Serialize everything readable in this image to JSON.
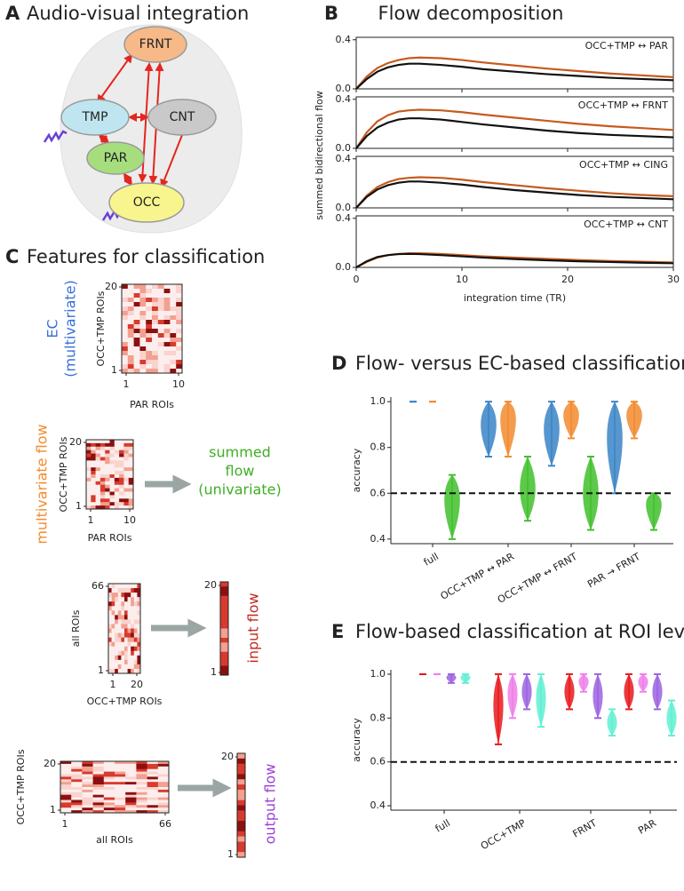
{
  "panels": {
    "a": {
      "label": "A",
      "title": "Audio-visual integration",
      "nodes": [
        {
          "label": "FRNT"
        },
        {
          "label": "TMP"
        },
        {
          "label": "CNT"
        },
        {
          "label": "PAR"
        },
        {
          "label": "OCC"
        }
      ]
    },
    "b": {
      "label": "B",
      "title": "Flow decomposition",
      "ylabel": "summed bidirectional flow",
      "xlabel": "integration time (TR)",
      "xlim": [
        0,
        30
      ],
      "xticks": [
        0,
        10,
        20,
        30
      ],
      "ylim": [
        0,
        0.42
      ],
      "yticks": [
        {
          "value": 0,
          "label": "0.0"
        },
        0.4
      ],
      "x": [
        0,
        1,
        2,
        3,
        4,
        5,
        6,
        8,
        10,
        12,
        15,
        18,
        21,
        24,
        27,
        30
      ],
      "subplots": [
        {
          "label": "OCC+TMP ↔ PAR",
          "series": [
            {
              "color": "#c65a1e",
              "values": [
                0,
                0.1,
                0.17,
                0.21,
                0.235,
                0.25,
                0.255,
                0.25,
                0.235,
                0.215,
                0.19,
                0.165,
                0.145,
                0.125,
                0.11,
                0.095
              ]
            },
            {
              "color": "#111111",
              "values": [
                0,
                0.08,
                0.14,
                0.175,
                0.195,
                0.205,
                0.205,
                0.195,
                0.18,
                0.16,
                0.14,
                0.12,
                0.105,
                0.09,
                0.08,
                0.07
              ]
            }
          ]
        },
        {
          "label": "OCC+TMP ↔ FRNT",
          "series": [
            {
              "color": "#c65a1e",
              "values": [
                0,
                0.13,
                0.22,
                0.27,
                0.3,
                0.31,
                0.315,
                0.31,
                0.295,
                0.275,
                0.25,
                0.225,
                0.2,
                0.18,
                0.165,
                0.15
              ]
            },
            {
              "color": "#111111",
              "values": [
                0,
                0.1,
                0.17,
                0.21,
                0.235,
                0.245,
                0.245,
                0.235,
                0.215,
                0.195,
                0.17,
                0.145,
                0.125,
                0.11,
                0.1,
                0.09
              ]
            }
          ]
        },
        {
          "label": "OCC+TMP ↔ CING",
          "series": [
            {
              "color": "#c65a1e",
              "values": [
                0,
                0.1,
                0.17,
                0.21,
                0.235,
                0.245,
                0.25,
                0.245,
                0.23,
                0.21,
                0.185,
                0.16,
                0.14,
                0.12,
                0.105,
                0.095
              ]
            },
            {
              "color": "#111111",
              "values": [
                0,
                0.09,
                0.15,
                0.185,
                0.205,
                0.215,
                0.215,
                0.205,
                0.19,
                0.17,
                0.145,
                0.125,
                0.105,
                0.09,
                0.08,
                0.07
              ]
            }
          ]
        },
        {
          "label": "OCC+TMP ↔ CNT",
          "series": [
            {
              "color": "#c65a1e",
              "values": [
                0,
                0.045,
                0.08,
                0.1,
                0.11,
                0.115,
                0.115,
                0.11,
                0.1,
                0.09,
                0.08,
                0.07,
                0.06,
                0.052,
                0.046,
                0.04
              ]
            },
            {
              "color": "#111111",
              "values": [
                0,
                0.05,
                0.085,
                0.1,
                0.108,
                0.11,
                0.108,
                0.1,
                0.09,
                0.08,
                0.068,
                0.058,
                0.05,
                0.044,
                0.038,
                0.034
              ]
            }
          ]
        }
      ]
    },
    "c": {
      "label": "C",
      "title": "Features for classification",
      "ec": {
        "name": [
          "EC",
          "(multivariate)"
        ],
        "ylabel": "OCC+TMP ROIs",
        "xlabel": "PAR ROIs",
        "yticks": [
          1,
          20
        ],
        "xticks": [
          1,
          10
        ]
      },
      "mflow": {
        "name": "multivariate flow",
        "ylabel": "OCC+TMP ROIs",
        "xlabel": "PAR ROIs",
        "yticks": [
          1,
          20
        ],
        "xticks": [
          1,
          10
        ],
        "target": [
          "summed",
          "flow",
          "(univariate)"
        ]
      },
      "input": {
        "ylabel": "all ROIs",
        "xlabel": "OCC+TMP ROIs",
        "yticks": [
          1,
          66
        ],
        "xticks": [
          1,
          20
        ],
        "out_yticks": [
          1,
          20
        ],
        "name": "input flow"
      },
      "output": {
        "ylabel": "OCC+TMP ROIs",
        "xlabel": "all ROIs",
        "yticks": [
          1,
          20
        ],
        "xticks": [
          1,
          66
        ],
        "out_yticks": [
          1,
          20
        ],
        "name": "output flow"
      }
    },
    "d": {
      "type": "violin",
      "label": "D",
      "title": "Flow- versus EC-based classification",
      "ylabel": "accuracy",
      "ylim": [
        0.38,
        1.02
      ],
      "yticks": [
        0.4,
        0.6,
        0.8,
        {
          "value": 1,
          "label": "1.0"
        }
      ],
      "hline": 0.6,
      "categories": [
        "full",
        "OCC+TMP ↔ PAR",
        "OCC+TMP ↔ FRNT",
        "PAR → FRNT"
      ],
      "series": [
        {
          "color": "#3a84c6",
          "min": [
            1,
            0.76,
            0.72,
            0.6
          ],
          "max": [
            1,
            1,
            1,
            1
          ],
          "median": [
            1,
            0.92,
            0.9,
            0.88
          ]
        },
        {
          "color": "#f28a2e",
          "min": [
            1,
            0.76,
            0.84,
            0.84
          ],
          "max": [
            1,
            1,
            1,
            1
          ],
          "median": [
            1,
            0.96,
            0.96,
            0.96
          ]
        },
        {
          "color": "#3fbf2a",
          "min": [
            0.4,
            0.48,
            0.44,
            0.44
          ],
          "max": [
            0.68,
            0.76,
            0.76,
            0.6
          ],
          "median": [
            0.6,
            0.62,
            0.6,
            0.58
          ]
        }
      ]
    },
    "e": {
      "type": "violin",
      "label": "E",
      "title": "Flow-based classification at ROI level",
      "ylabel": "accuracy",
      "ylim": [
        0.38,
        1.02
      ],
      "yticks": [
        0.4,
        0.6,
        0.8,
        {
          "value": 1,
          "label": "1.0"
        }
      ],
      "hline": 0.6,
      "categories": [
        "full",
        "OCC+TMP",
        "FRNT",
        "PAR"
      ],
      "series": [
        {
          "color": "#e8191c",
          "min": [
            1,
            0.68,
            0.84,
            0.84
          ],
          "max": [
            1,
            1,
            1,
            1
          ],
          "median": [
            1,
            0.88,
            0.92,
            0.92
          ]
        },
        {
          "color": "#ef7ee8",
          "min": [
            1,
            0.8,
            0.92,
            0.92
          ],
          "max": [
            1,
            1,
            1,
            1
          ],
          "median": [
            1,
            0.92,
            0.97,
            0.97
          ]
        },
        {
          "color": "#9b62e0",
          "min": [
            0.96,
            0.84,
            0.8,
            0.84
          ],
          "max": [
            1,
            1,
            1,
            1
          ],
          "median": [
            0.99,
            0.92,
            0.9,
            0.92
          ]
        },
        {
          "color": "#5ff0d2",
          "min": [
            0.96,
            0.76,
            0.72,
            0.72
          ],
          "max": [
            1,
            1,
            0.84,
            0.88
          ],
          "median": [
            0.99,
            0.9,
            0.78,
            0.8
          ]
        }
      ]
    }
  }
}
